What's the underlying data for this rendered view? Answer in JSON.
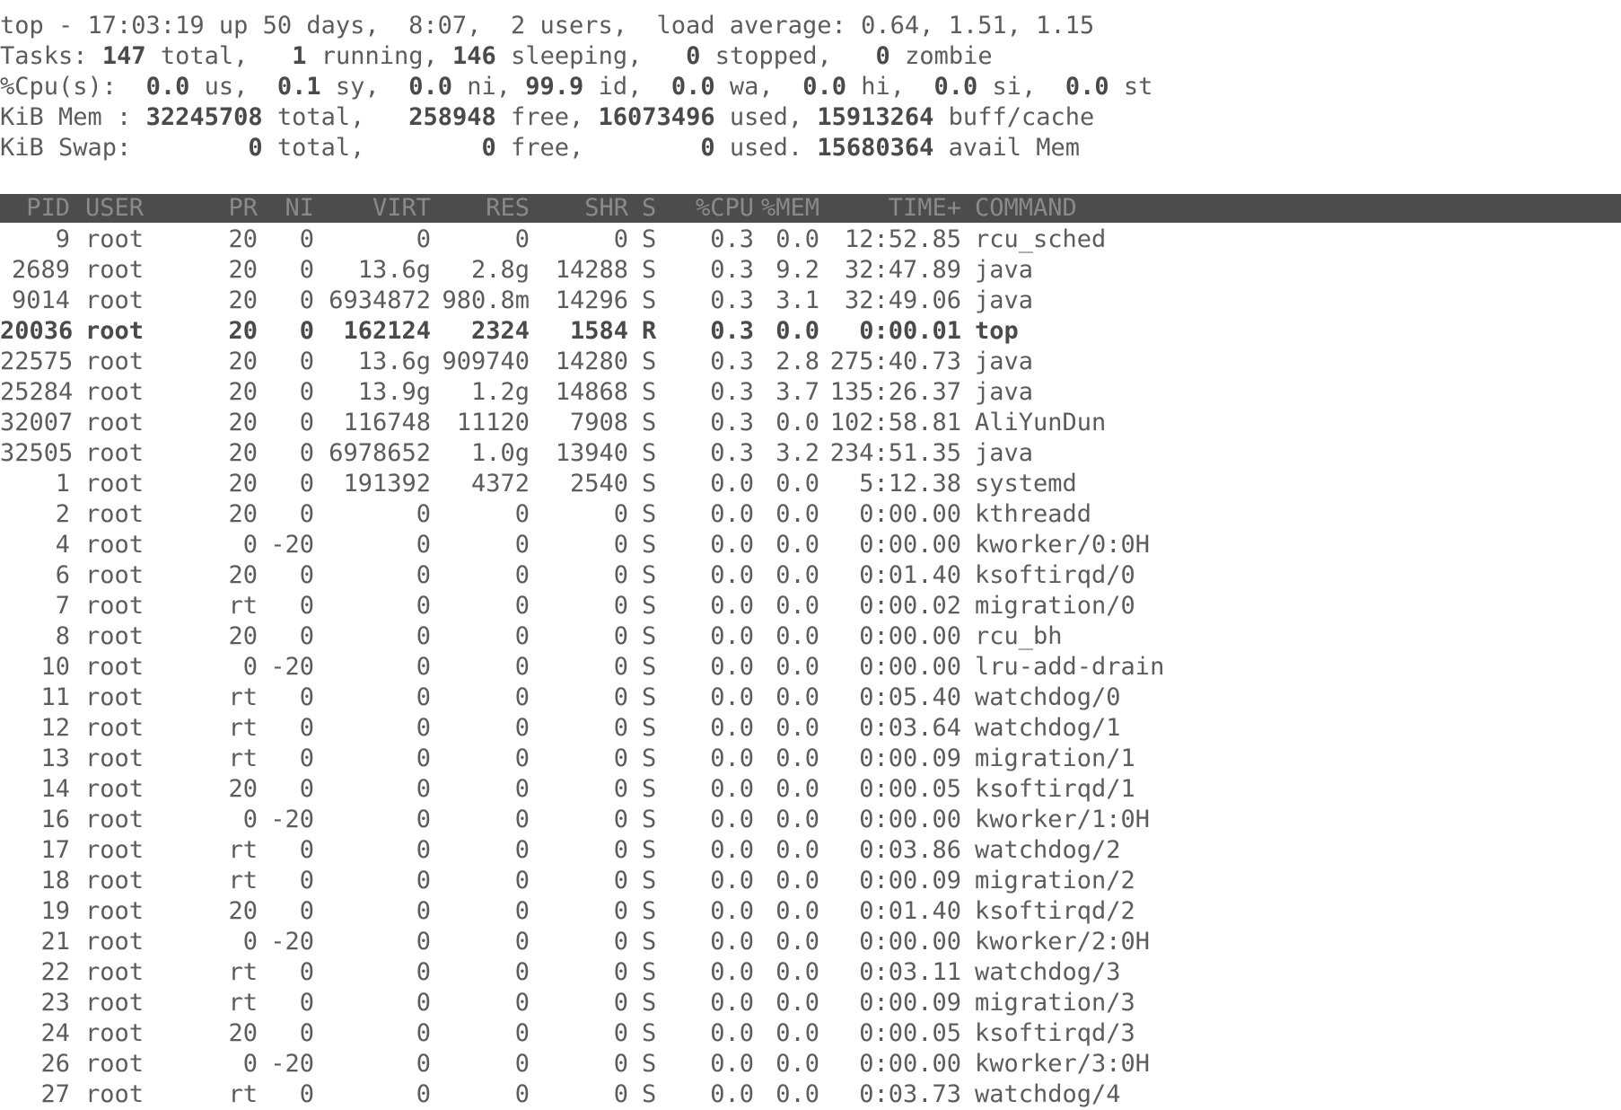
{
  "summary": {
    "uptime_line": "top - 17:03:19 up 50 days,  8:07,  2 users,  load average: 0.64, 1.51, 1.15",
    "tasks": {
      "label": "Tasks:",
      "total": "147",
      "total_label": "total,",
      "running": "1",
      "running_label": "running,",
      "sleeping": "146",
      "sleeping_label": "sleeping,",
      "stopped": "0",
      "stopped_label": "stopped,",
      "zombie": "0",
      "zombie_label": "zombie"
    },
    "cpu": {
      "label": "%Cpu(s):",
      "us": "0.0",
      "sy": "0.1",
      "ni": "0.0",
      "id": "99.9",
      "wa": "0.0",
      "hi": "0.0",
      "si": "0.0",
      "st": "0.0"
    },
    "mem": {
      "label": "KiB Mem :",
      "total": "32245708",
      "free": "258948",
      "used": "16073496",
      "buff_cache": "15913264"
    },
    "swap": {
      "label": "KiB Swap:",
      "total": "0",
      "free": "0",
      "used": "0",
      "avail": "15680364"
    }
  },
  "columns": [
    "PID",
    "USER",
    "PR",
    "NI",
    "VIRT",
    "RES",
    "SHR",
    "S",
    "%CPU",
    "%MEM",
    "TIME+",
    "COMMAND"
  ],
  "processes": [
    [
      "9",
      "root",
      "20",
      "0",
      "0",
      "0",
      "0",
      "S",
      "0.3",
      "0.0",
      "12:52.85",
      "rcu_sched"
    ],
    [
      "2689",
      "root",
      "20",
      "0",
      "13.6g",
      "2.8g",
      "14288",
      "S",
      "0.3",
      "9.2",
      "32:47.89",
      "java"
    ],
    [
      "9014",
      "root",
      "20",
      "0",
      "6934872",
      "980.8m",
      "14296",
      "S",
      "0.3",
      "3.1",
      "32:49.06",
      "java"
    ],
    [
      "20036",
      "root",
      "20",
      "0",
      "162124",
      "2324",
      "1584",
      "R",
      "0.3",
      "0.0",
      "0:00.01",
      "top"
    ],
    [
      "22575",
      "root",
      "20",
      "0",
      "13.6g",
      "909740",
      "14280",
      "S",
      "0.3",
      "2.8",
      "275:40.73",
      "java"
    ],
    [
      "25284",
      "root",
      "20",
      "0",
      "13.9g",
      "1.2g",
      "14868",
      "S",
      "0.3",
      "3.7",
      "135:26.37",
      "java"
    ],
    [
      "32007",
      "root",
      "20",
      "0",
      "116748",
      "11120",
      "7908",
      "S",
      "0.3",
      "0.0",
      "102:58.81",
      "AliYunDun"
    ],
    [
      "32505",
      "root",
      "20",
      "0",
      "6978652",
      "1.0g",
      "13940",
      "S",
      "0.3",
      "3.2",
      "234:51.35",
      "java"
    ],
    [
      "1",
      "root",
      "20",
      "0",
      "191392",
      "4372",
      "2540",
      "S",
      "0.0",
      "0.0",
      "5:12.38",
      "systemd"
    ],
    [
      "2",
      "root",
      "20",
      "0",
      "0",
      "0",
      "0",
      "S",
      "0.0",
      "0.0",
      "0:00.00",
      "kthreadd"
    ],
    [
      "4",
      "root",
      "0",
      "-20",
      "0",
      "0",
      "0",
      "S",
      "0.0",
      "0.0",
      "0:00.00",
      "kworker/0:0H"
    ],
    [
      "6",
      "root",
      "20",
      "0",
      "0",
      "0",
      "0",
      "S",
      "0.0",
      "0.0",
      "0:01.40",
      "ksoftirqd/0"
    ],
    [
      "7",
      "root",
      "rt",
      "0",
      "0",
      "0",
      "0",
      "S",
      "0.0",
      "0.0",
      "0:00.02",
      "migration/0"
    ],
    [
      "8",
      "root",
      "20",
      "0",
      "0",
      "0",
      "0",
      "S",
      "0.0",
      "0.0",
      "0:00.00",
      "rcu_bh"
    ],
    [
      "10",
      "root",
      "0",
      "-20",
      "0",
      "0",
      "0",
      "S",
      "0.0",
      "0.0",
      "0:00.00",
      "lru-add-drain"
    ],
    [
      "11",
      "root",
      "rt",
      "0",
      "0",
      "0",
      "0",
      "S",
      "0.0",
      "0.0",
      "0:05.40",
      "watchdog/0"
    ],
    [
      "12",
      "root",
      "rt",
      "0",
      "0",
      "0",
      "0",
      "S",
      "0.0",
      "0.0",
      "0:03.64",
      "watchdog/1"
    ],
    [
      "13",
      "root",
      "rt",
      "0",
      "0",
      "0",
      "0",
      "S",
      "0.0",
      "0.0",
      "0:00.09",
      "migration/1"
    ],
    [
      "14",
      "root",
      "20",
      "0",
      "0",
      "0",
      "0",
      "S",
      "0.0",
      "0.0",
      "0:00.05",
      "ksoftirqd/1"
    ],
    [
      "16",
      "root",
      "0",
      "-20",
      "0",
      "0",
      "0",
      "S",
      "0.0",
      "0.0",
      "0:00.00",
      "kworker/1:0H"
    ],
    [
      "17",
      "root",
      "rt",
      "0",
      "0",
      "0",
      "0",
      "S",
      "0.0",
      "0.0",
      "0:03.86",
      "watchdog/2"
    ],
    [
      "18",
      "root",
      "rt",
      "0",
      "0",
      "0",
      "0",
      "S",
      "0.0",
      "0.0",
      "0:00.09",
      "migration/2"
    ],
    [
      "19",
      "root",
      "20",
      "0",
      "0",
      "0",
      "0",
      "S",
      "0.0",
      "0.0",
      "0:01.40",
      "ksoftirqd/2"
    ],
    [
      "21",
      "root",
      "0",
      "-20",
      "0",
      "0",
      "0",
      "S",
      "0.0",
      "0.0",
      "0:00.00",
      "kworker/2:0H"
    ],
    [
      "22",
      "root",
      "rt",
      "0",
      "0",
      "0",
      "0",
      "S",
      "0.0",
      "0.0",
      "0:03.11",
      "watchdog/3"
    ],
    [
      "23",
      "root",
      "rt",
      "0",
      "0",
      "0",
      "0",
      "S",
      "0.0",
      "0.0",
      "0:00.09",
      "migration/3"
    ],
    [
      "24",
      "root",
      "20",
      "0",
      "0",
      "0",
      "0",
      "S",
      "0.0",
      "0.0",
      "0:00.05",
      "ksoftirqd/3"
    ],
    [
      "26",
      "root",
      "0",
      "-20",
      "0",
      "0",
      "0",
      "S",
      "0.0",
      "0.0",
      "0:00.00",
      "kworker/3:0H"
    ],
    [
      "27",
      "root",
      "rt",
      "0",
      "0",
      "0",
      "0",
      "S",
      "0.0",
      "0.0",
      "0:03.73",
      "watchdog/4"
    ]
  ],
  "highlighted_pid": "20036"
}
